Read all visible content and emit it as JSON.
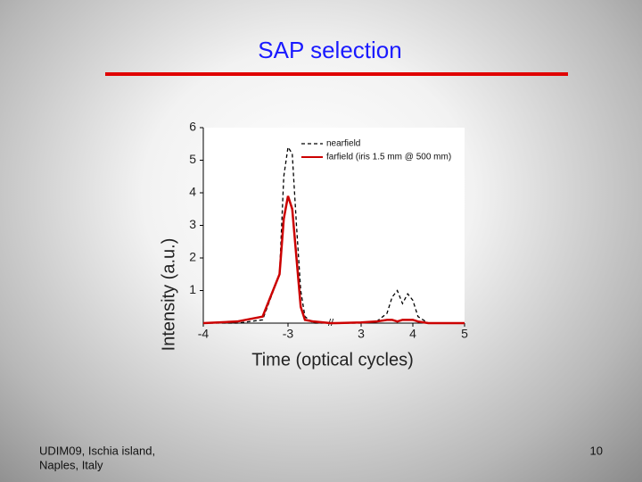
{
  "slide": {
    "title": "SAP selection",
    "footer": [
      "UDIM09, Ischia island,",
      "Naples, Italy"
    ],
    "page_number": "10"
  },
  "chart_data": {
    "type": "line",
    "x_label": "Time (optical cycles)",
    "y_label": "Intensity (a.u.)",
    "x": [
      -4,
      -3.6,
      -3.3,
      -3.1,
      -3.05,
      -3,
      -2.95,
      -2.9,
      -2.85,
      -2.8,
      -2.7,
      -2.5,
      2.5,
      3,
      3.3,
      3.5,
      3.6,
      3.7,
      3.8,
      3.9,
      4,
      4.1,
      4.3,
      4.5,
      5
    ],
    "series": [
      {
        "name": "nearfield",
        "color": "#000000",
        "dashed": true,
        "values": [
          0,
          0,
          0.1,
          1.5,
          4.5,
          5.4,
          5.2,
          3,
          1,
          0.2,
          0,
          0,
          0,
          0,
          0.05,
          0.3,
          0.8,
          1,
          0.6,
          0.9,
          0.7,
          0.2,
          0,
          0,
          0
        ]
      },
      {
        "name": "farfield (iris 1.5 mm @ 500 mm)",
        "color": "#cc0000",
        "dashed": false,
        "values": [
          0,
          0.05,
          0.2,
          1.5,
          3.2,
          3.9,
          3.5,
          2,
          0.5,
          0.1,
          0.05,
          0,
          0,
          0.02,
          0.05,
          0.1,
          0.1,
          0.05,
          0.1,
          0.1,
          0.1,
          0.05,
          0,
          0,
          0
        ]
      }
    ],
    "xlim": [
      -4,
      5
    ],
    "x_break": [
      -2.5,
      2.5
    ],
    "xticks": [
      -4,
      -3,
      3,
      4,
      5
    ],
    "ylim": [
      0,
      6
    ],
    "yticks": [
      1,
      2,
      3,
      4,
      5,
      6
    ],
    "legend": "top-right"
  }
}
